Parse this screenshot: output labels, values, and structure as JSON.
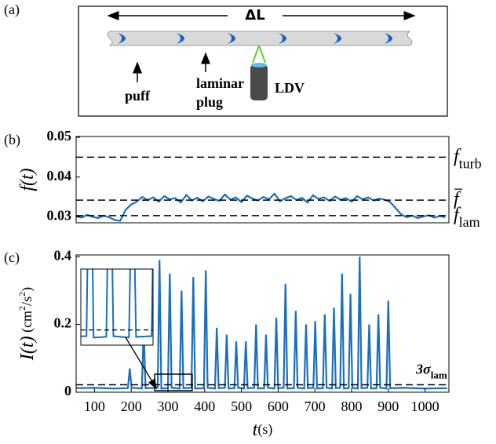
{
  "panel_labels": [
    "(a)",
    "(b)",
    "(c)"
  ],
  "diagram": {
    "length_label": "ΔL",
    "labels": [
      "puff",
      "laminar plug",
      "LDV"
    ]
  },
  "chart_data": [
    {
      "type": "line",
      "color": "#1a6fc0",
      "ylabel": [
        {
          "text": "f(t)",
          "italic": true
        }
      ],
      "xlim": [
        50,
        1065
      ],
      "ylim": [
        0.0285,
        0.0502
      ],
      "yticks": [
        0.03,
        0.04,
        0.05
      ],
      "hlines": [
        {
          "value": 0.045,
          "label": {
            "symbol": "f",
            "subscript": "turb"
          }
        },
        {
          "value": 0.0342,
          "label": {
            "symbol": "f",
            "overbar": true
          }
        },
        {
          "value": 0.0303,
          "label": {
            "symbol": "f",
            "subscript": "lam"
          }
        }
      ],
      "x": [
        50,
        65,
        80,
        95,
        110,
        125,
        140,
        155,
        170,
        185,
        200,
        215,
        230,
        245,
        260,
        275,
        290,
        305,
        320,
        335,
        350,
        365,
        380,
        395,
        410,
        425,
        440,
        455,
        470,
        485,
        500,
        515,
        530,
        545,
        560,
        575,
        590,
        605,
        620,
        635,
        650,
        665,
        680,
        695,
        710,
        725,
        740,
        755,
        770,
        785,
        800,
        815,
        830,
        845,
        860,
        875,
        890,
        905,
        920,
        935,
        950,
        965,
        980,
        995,
        1010,
        1025,
        1040,
        1055
      ],
      "values": [
        0.0302,
        0.0298,
        0.0305,
        0.03,
        0.0297,
        0.0303,
        0.0299,
        0.0292,
        0.029,
        0.0318,
        0.0331,
        0.0338,
        0.035,
        0.0342,
        0.0349,
        0.0338,
        0.0352,
        0.0344,
        0.0347,
        0.0336,
        0.0355,
        0.0341,
        0.0348,
        0.0339,
        0.0351,
        0.0345,
        0.034,
        0.0356,
        0.0343,
        0.0349,
        0.0337,
        0.0353,
        0.0346,
        0.0341,
        0.035,
        0.0344,
        0.0358,
        0.0339,
        0.0347,
        0.0352,
        0.0342,
        0.0348,
        0.0336,
        0.0354,
        0.0345,
        0.0349,
        0.034,
        0.0351,
        0.0343,
        0.0347,
        0.0338,
        0.0352,
        0.0344,
        0.0349,
        0.0341,
        0.0346,
        0.0343,
        0.0337,
        0.0322,
        0.0306,
        0.0299,
        0.0303,
        0.0297,
        0.0301,
        0.0304,
        0.0298,
        0.0302,
        0.0299
      ]
    },
    {
      "type": "line",
      "color": "#1a6fc0",
      "ylabel": [
        {
          "text": "I(t)",
          "italic": true
        },
        {
          "text": " (cm"
        },
        {
          "text": "2",
          "sup": true
        },
        {
          "text": "/s"
        },
        {
          "text": "2",
          "sup": true
        },
        {
          "text": ")"
        }
      ],
      "xlabel": [
        {
          "text": "t",
          "italic": true
        },
        {
          "text": "(s)"
        }
      ],
      "xlim": [
        50,
        1065
      ],
      "ylim": [
        0,
        0.405
      ],
      "xticks": [
        100,
        200,
        300,
        400,
        500,
        600,
        700,
        800,
        900,
        1000
      ],
      "yticks": [
        0,
        0.2,
        0.4
      ],
      "hlines": [
        {
          "value": 0.022,
          "label": {
            "symbol": "3σ",
            "subscript": "lam"
          }
        }
      ],
      "inset": {
        "xlim": [
          264,
          366
        ],
        "ylim": [
          0,
          0.11
        ]
      },
      "x": [
        50,
        100,
        150,
        191,
        196,
        201,
        229,
        234,
        239,
        272,
        277,
        282,
        300,
        305,
        310,
        332,
        337,
        342,
        364,
        369,
        374,
        398,
        403,
        408,
        428,
        433,
        438,
        455,
        460,
        465,
        481,
        486,
        491,
        507,
        512,
        517,
        535,
        540,
        545,
        562,
        567,
        572,
        590,
        595,
        600,
        615,
        620,
        625,
        643,
        648,
        653,
        671,
        676,
        681,
        696,
        701,
        706,
        722,
        727,
        732,
        747,
        752,
        757,
        769,
        774,
        779,
        792,
        797,
        802,
        817,
        822,
        827,
        843,
        848,
        853,
        868,
        873,
        878,
        895,
        900,
        905,
        940,
        1000,
        1060
      ],
      "values": [
        0.012,
        0.013,
        0.011,
        0.012,
        0.07,
        0.013,
        0.011,
        0.19,
        0.012,
        0.013,
        0.39,
        0.011,
        0.012,
        0.35,
        0.013,
        0.011,
        0.3,
        0.012,
        0.013,
        0.34,
        0.011,
        0.012,
        0.36,
        0.013,
        0.011,
        0.19,
        0.012,
        0.013,
        0.17,
        0.011,
        0.012,
        0.15,
        0.013,
        0.011,
        0.15,
        0.012,
        0.013,
        0.2,
        0.011,
        0.012,
        0.17,
        0.013,
        0.011,
        0.22,
        0.012,
        0.013,
        0.32,
        0.011,
        0.012,
        0.24,
        0.013,
        0.011,
        0.2,
        0.012,
        0.013,
        0.21,
        0.011,
        0.012,
        0.23,
        0.013,
        0.011,
        0.25,
        0.012,
        0.013,
        0.35,
        0.011,
        0.012,
        0.29,
        0.013,
        0.011,
        0.4,
        0.012,
        0.013,
        0.2,
        0.011,
        0.012,
        0.23,
        0.013,
        0.011,
        0.27,
        0.012,
        0.013,
        0.011,
        0.012
      ]
    }
  ]
}
